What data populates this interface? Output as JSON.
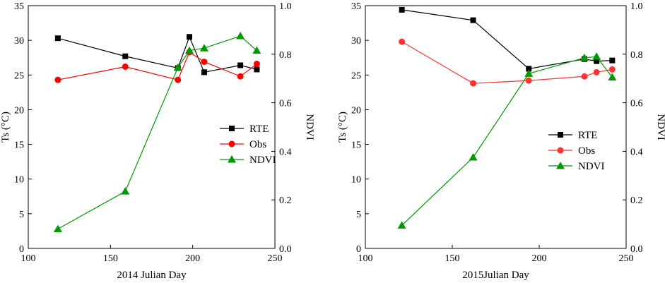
{
  "chart_data": [
    {
      "type": "line",
      "title": "",
      "xlabel": "2014 Julian Day",
      "ylabel": "Ts (°C)",
      "y2label": "NDVI",
      "xlim": [
        100,
        250
      ],
      "ylim": [
        0,
        35
      ],
      "y2lim": [
        0.0,
        1.0
      ],
      "xticks": [
        "100",
        "150",
        "200",
        "250"
      ],
      "yticks": [
        "0",
        "5",
        "10",
        "15",
        "20",
        "25",
        "30",
        "35"
      ],
      "y2ticks": [
        "0.0",
        "0.2",
        "0.4",
        "0.6",
        "0.8",
        "1.0"
      ],
      "legend_position": "center-right",
      "series": [
        {
          "name": "RTE",
          "axis": "left",
          "color": "#000000",
          "marker": "square",
          "x": [
            118,
            159,
            191,
            198,
            207,
            229,
            239
          ],
          "y": [
            30.3,
            27.7,
            26.0,
            30.5,
            25.4,
            26.4,
            25.8
          ]
        },
        {
          "name": "Obs",
          "axis": "left",
          "color": "#ff0000",
          "marker": "circle",
          "x": [
            118,
            159,
            191,
            198,
            207,
            229,
            239
          ],
          "y": [
            24.3,
            26.2,
            24.3,
            28.3,
            26.9,
            24.8,
            26.6
          ]
        },
        {
          "name": "NDVI",
          "axis": "right",
          "color": "#009900",
          "marker": "triangle",
          "x": [
            118,
            159,
            191,
            198,
            207,
            229,
            239
          ],
          "y": [
            0.08,
            0.235,
            0.745,
            0.815,
            0.825,
            0.875,
            0.815
          ]
        }
      ]
    },
    {
      "type": "line",
      "title": "",
      "xlabel": "2015Julian Day",
      "ylabel": "Ts (°C)",
      "y2label": "NDVI",
      "xlim": [
        100,
        250
      ],
      "ylim": [
        0,
        35
      ],
      "y2lim": [
        0.0,
        1.0
      ],
      "xticks": [
        "100",
        "150",
        "200",
        "250"
      ],
      "yticks": [
        "0",
        "5",
        "10",
        "15",
        "20",
        "25",
        "30",
        "35"
      ],
      "y2ticks": [
        "0.0",
        "0.2",
        "0.4",
        "0.6",
        "0.8",
        "1.0"
      ],
      "legend_position": "center-right",
      "series": [
        {
          "name": "RTE",
          "axis": "left",
          "color": "#000000",
          "marker": "square",
          "x": [
            121,
            162,
            194,
            226,
            233,
            242
          ],
          "y": [
            34.4,
            32.9,
            25.9,
            27.3,
            27.0,
            27.1
          ]
        },
        {
          "name": "Obs",
          "axis": "left",
          "color": "#ff3333",
          "marker": "circle",
          "x": [
            121,
            162,
            194,
            226,
            233,
            242
          ],
          "y": [
            29.8,
            23.8,
            24.2,
            24.8,
            25.4,
            25.8
          ]
        },
        {
          "name": "NDVI",
          "axis": "right",
          "color": "#009900",
          "marker": "triangle",
          "x": [
            121,
            162,
            194,
            226,
            233,
            242
          ],
          "y": [
            0.095,
            0.375,
            0.72,
            0.785,
            0.79,
            0.705
          ]
        }
      ]
    }
  ]
}
